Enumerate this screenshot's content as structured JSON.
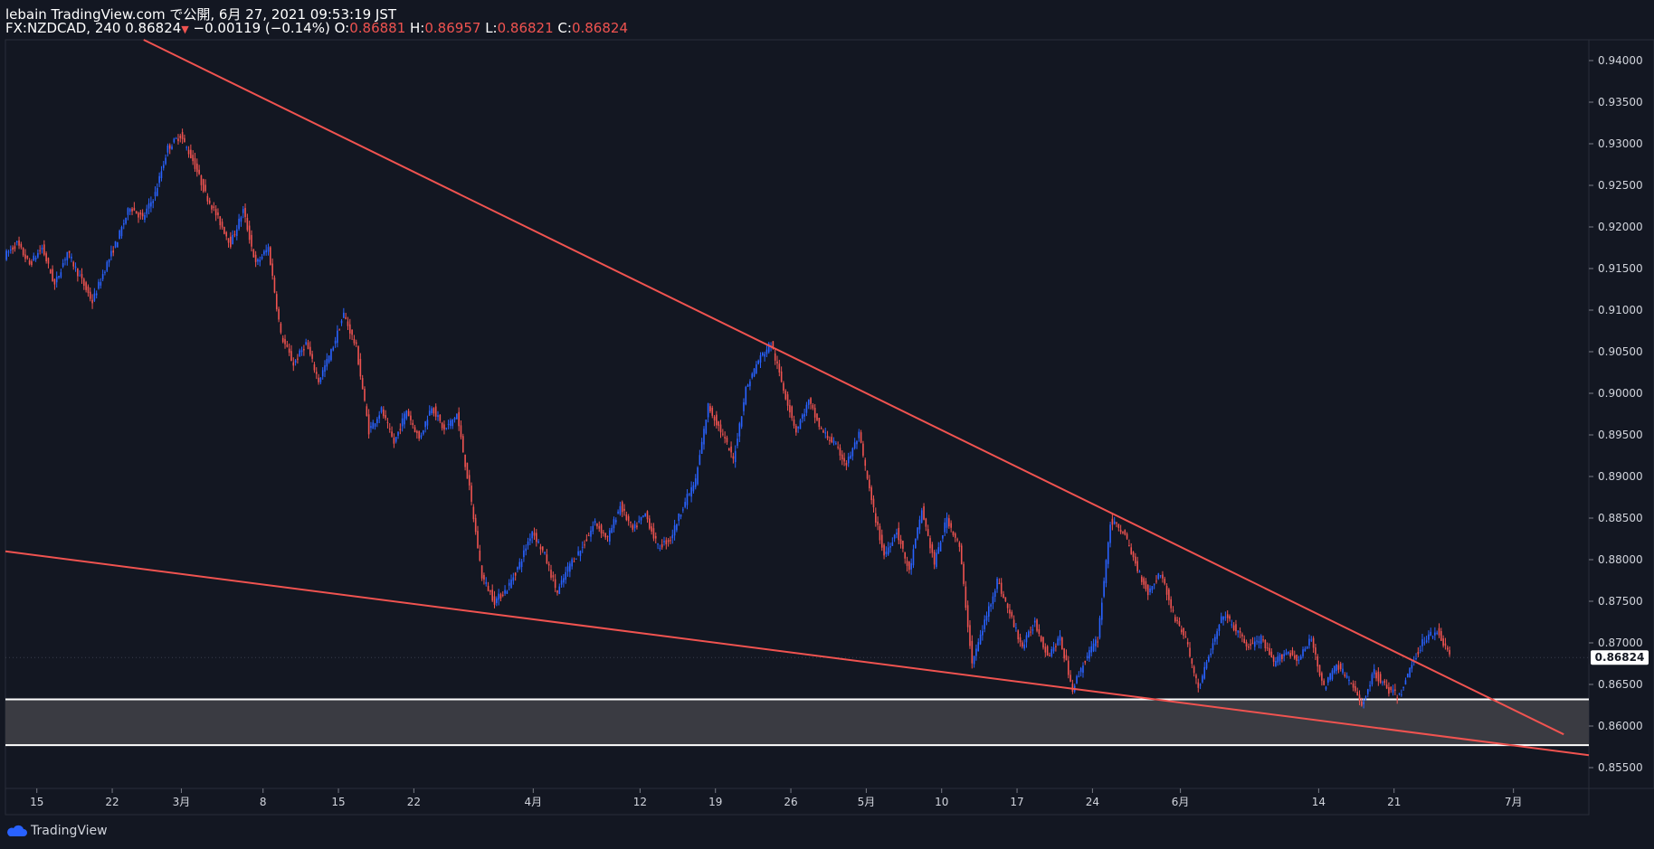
{
  "header": {
    "publisher_line": "lebain TradingView.com で公開, 6月 27, 2021 09:53:19 JST",
    "symbol": "FX:NZDCAD, 240",
    "last_price": "0.86824",
    "change": "−0.00119 (−0.14%)",
    "o_label": "O:",
    "o_value": "0.86881",
    "h_label": "H:",
    "h_value": "0.86957",
    "l_label": "L:",
    "l_value": "0.86821",
    "c_label": "C:",
    "c_value": "0.86824"
  },
  "footer": {
    "brand": "TradingView"
  },
  "chart_data": {
    "type": "candlestick",
    "title": "FX:NZDCAD, 240",
    "ylim": [
      0.8525,
      0.9425
    ],
    "y_ticks": [
      "0.94000",
      "0.93500",
      "0.93000",
      "0.92500",
      "0.92000",
      "0.91500",
      "0.91000",
      "0.90500",
      "0.90000",
      "0.89500",
      "0.89000",
      "0.88500",
      "0.88000",
      "0.87500",
      "0.87000",
      "0.86500",
      "0.86000",
      "0.85500"
    ],
    "y_tick_values": [
      0.94,
      0.935,
      0.93,
      0.925,
      0.92,
      0.915,
      0.91,
      0.905,
      0.9,
      0.895,
      0.89,
      0.885,
      0.88,
      0.875,
      0.87,
      0.865,
      0.86,
      0.855
    ],
    "x_ticks": [
      "15",
      "22",
      "3月",
      "8",
      "15",
      "22",
      "4月",
      "12",
      "19",
      "26",
      "5月",
      "10",
      "17",
      "24",
      "6月",
      "14",
      "21",
      "7月"
    ],
    "x_tick_values": [
      0.5,
      6.5,
      12.0,
      18.5,
      24.5,
      30.5,
      40.0,
      48.5,
      54.5,
      60.5,
      66.5,
      72.5,
      78.5,
      84.5,
      91.5,
      102.5,
      108.5,
      118.0
    ],
    "x_range": [
      -2,
      124
    ],
    "current_price": 0.86824,
    "current_price_label": "0.86824",
    "price_path": [
      [
        -2,
        0.9165
      ],
      [
        -1,
        0.918
      ],
      [
        0,
        0.9155
      ],
      [
        1,
        0.9175
      ],
      [
        2,
        0.913
      ],
      [
        3,
        0.917
      ],
      [
        4,
        0.914
      ],
      [
        5,
        0.911
      ],
      [
        6,
        0.915
      ],
      [
        7,
        0.9185
      ],
      [
        8,
        0.9225
      ],
      [
        9,
        0.921
      ],
      [
        10,
        0.924
      ],
      [
        11,
        0.9295
      ],
      [
        12,
        0.931
      ],
      [
        13,
        0.928
      ],
      [
        14,
        0.924
      ],
      [
        15,
        0.921
      ],
      [
        16,
        0.918
      ],
      [
        17,
        0.922
      ],
      [
        18,
        0.9155
      ],
      [
        19,
        0.9175
      ],
      [
        20,
        0.907
      ],
      [
        21,
        0.9035
      ],
      [
        22,
        0.906
      ],
      [
        23,
        0.9015
      ],
      [
        24,
        0.905
      ],
      [
        25,
        0.9095
      ],
      [
        26,
        0.9055
      ],
      [
        27,
        0.8955
      ],
      [
        28,
        0.898
      ],
      [
        29,
        0.894
      ],
      [
        30,
        0.898
      ],
      [
        31,
        0.8945
      ],
      [
        32,
        0.8985
      ],
      [
        33,
        0.8955
      ],
      [
        34,
        0.8975
      ],
      [
        35,
        0.8885
      ],
      [
        36,
        0.878
      ],
      [
        37,
        0.875
      ],
      [
        38,
        0.8765
      ],
      [
        39,
        0.8795
      ],
      [
        40,
        0.8835
      ],
      [
        41,
        0.8805
      ],
      [
        42,
        0.876
      ],
      [
        43,
        0.8795
      ],
      [
        44,
        0.8815
      ],
      [
        45,
        0.8845
      ],
      [
        46,
        0.8825
      ],
      [
        47,
        0.8865
      ],
      [
        48,
        0.8835
      ],
      [
        49,
        0.8855
      ],
      [
        50,
        0.8815
      ],
      [
        51,
        0.8825
      ],
      [
        52,
        0.8865
      ],
      [
        53,
        0.8895
      ],
      [
        54,
        0.8985
      ],
      [
        55,
        0.8955
      ],
      [
        56,
        0.892
      ],
      [
        57,
        0.9005
      ],
      [
        58,
        0.904
      ],
      [
        59,
        0.906
      ],
      [
        60,
        0.9005
      ],
      [
        61,
        0.8955
      ],
      [
        62,
        0.899
      ],
      [
        63,
        0.8955
      ],
      [
        64,
        0.894
      ],
      [
        65,
        0.8915
      ],
      [
        66,
        0.895
      ],
      [
        67,
        0.887
      ],
      [
        68,
        0.8805
      ],
      [
        69,
        0.8835
      ],
      [
        70,
        0.8785
      ],
      [
        71,
        0.886
      ],
      [
        72,
        0.8795
      ],
      [
        73,
        0.885
      ],
      [
        74,
        0.8815
      ],
      [
        75,
        0.8675
      ],
      [
        76,
        0.8725
      ],
      [
        77,
        0.8775
      ],
      [
        78,
        0.8735
      ],
      [
        79,
        0.8695
      ],
      [
        80,
        0.8725
      ],
      [
        81,
        0.8685
      ],
      [
        82,
        0.8705
      ],
      [
        83,
        0.8645
      ],
      [
        84,
        0.868
      ],
      [
        85,
        0.8705
      ],
      [
        86,
        0.8845
      ],
      [
        87,
        0.8835
      ],
      [
        88,
        0.8795
      ],
      [
        89,
        0.876
      ],
      [
        90,
        0.8785
      ],
      [
        91,
        0.8735
      ],
      [
        92,
        0.8705
      ],
      [
        93,
        0.8645
      ],
      [
        94,
        0.869
      ],
      [
        95,
        0.8735
      ],
      [
        96,
        0.8715
      ],
      [
        97,
        0.8695
      ],
      [
        98,
        0.8705
      ],
      [
        99,
        0.8675
      ],
      [
        100,
        0.869
      ],
      [
        101,
        0.868
      ],
      [
        102,
        0.8705
      ],
      [
        103,
        0.8645
      ],
      [
        104,
        0.8675
      ],
      [
        105,
        0.8655
      ],
      [
        106,
        0.8625
      ],
      [
        107,
        0.8665
      ],
      [
        108,
        0.8645
      ],
      [
        109,
        0.8635
      ],
      [
        110,
        0.8675
      ],
      [
        111,
        0.8705
      ],
      [
        112,
        0.8715
      ],
      [
        113,
        0.8685
      ]
    ],
    "trendlines": [
      {
        "name": "upper-resistance",
        "x1": 9,
        "y1": 0.9425,
        "x2": 122,
        "y2": 0.859
      },
      {
        "name": "lower-support",
        "x1": -2,
        "y1": 0.881,
        "x2": 124,
        "y2": 0.8565
      }
    ],
    "support_zone": {
      "top": 0.8632,
      "bottom": 0.8577
    },
    "colors": {
      "up": "#2962ff",
      "down": "#ef5350",
      "trendline": "#f05350",
      "zone_fill": "#3a3b42",
      "zone_border": "#ffffff",
      "background": "#131722",
      "text": "#d1d4dc"
    }
  }
}
